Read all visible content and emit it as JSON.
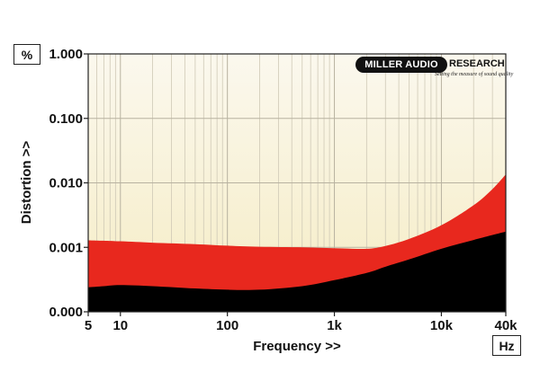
{
  "chart_data": {
    "type": "area",
    "title": "",
    "xlabel": "Frequency >>",
    "ylabel": "Distortion >>",
    "x_unit": "Hz",
    "y_unit": "%",
    "x_scale": "log",
    "y_scale": "log",
    "xlim": [
      5,
      40000
    ],
    "ylim": [
      0.0001,
      1.0
    ],
    "grid": true,
    "x_ticks": [
      {
        "value": 5,
        "label": "5"
      },
      {
        "value": 10,
        "label": "10"
      },
      {
        "value": 100,
        "label": "100"
      },
      {
        "value": 1000,
        "label": "1k"
      },
      {
        "value": 10000,
        "label": "10k"
      },
      {
        "value": 40000,
        "label": "40k"
      }
    ],
    "y_ticks": [
      {
        "value": 0.0001,
        "label": "0.000"
      },
      {
        "value": 0.001,
        "label": "0.001"
      },
      {
        "value": 0.01,
        "label": "0.010"
      },
      {
        "value": 0.1,
        "label": "0.100"
      },
      {
        "value": 1.0,
        "label": "1.000"
      }
    ],
    "series": [
      {
        "color": "#e8281e",
        "x": [
          5,
          10,
          20,
          50,
          100,
          200,
          500,
          1000,
          2000,
          3000,
          5000,
          10000,
          20000,
          30000,
          40000
        ],
        "values": [
          0.00128,
          0.00124,
          0.00118,
          0.00112,
          0.00106,
          0.00102,
          0.001,
          0.00097,
          0.00095,
          0.00105,
          0.00135,
          0.0022,
          0.0045,
          0.008,
          0.0135
        ]
      },
      {
        "color": "#000000",
        "x": [
          5,
          7,
          10,
          20,
          50,
          100,
          200,
          500,
          1000,
          2000,
          3000,
          5000,
          10000,
          20000,
          40000
        ],
        "values": [
          0.00024,
          0.00025,
          0.00026,
          0.00025,
          0.00023,
          0.00022,
          0.00022,
          0.00025,
          0.00031,
          0.0004,
          0.0005,
          0.00065,
          0.00095,
          0.0013,
          0.00175
        ]
      }
    ]
  },
  "logo": {
    "left": "MILLER AUDIO",
    "right": "RESEARCH",
    "tagline": "Setting the measure of sound quality"
  }
}
